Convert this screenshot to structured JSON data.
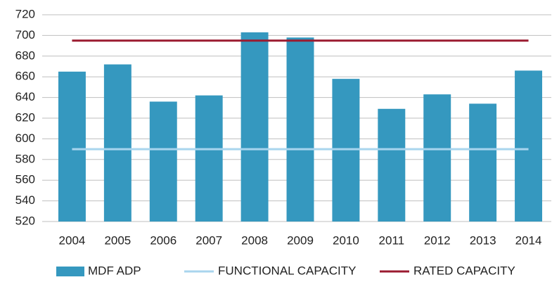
{
  "chart_data": {
    "type": "bar",
    "categories": [
      "2004",
      "2005",
      "2006",
      "2007",
      "2008",
      "2009",
      "2010",
      "2011",
      "2012",
      "2013",
      "2014"
    ],
    "series": [
      {
        "name": "MDF ADP",
        "type": "bar",
        "color": "#3598bf",
        "values": [
          665,
          672,
          636,
          642,
          703,
          698,
          658,
          629,
          643,
          634,
          666
        ]
      },
      {
        "name": "FUNCTIONAL CAPACITY",
        "type": "line",
        "color": "#a9d5ee",
        "values": [
          590,
          590,
          590,
          590,
          590,
          590,
          590,
          590,
          590,
          590,
          590
        ]
      },
      {
        "name": "RATED CAPACITY",
        "type": "line",
        "color": "#9b1b30",
        "values": [
          695,
          695,
          695,
          695,
          695,
          695,
          695,
          695,
          695,
          695,
          695
        ]
      }
    ],
    "ylim": [
      520,
      720
    ],
    "yticks": [
      520,
      540,
      560,
      580,
      600,
      620,
      640,
      660,
      680,
      700,
      720
    ],
    "grid": true
  }
}
